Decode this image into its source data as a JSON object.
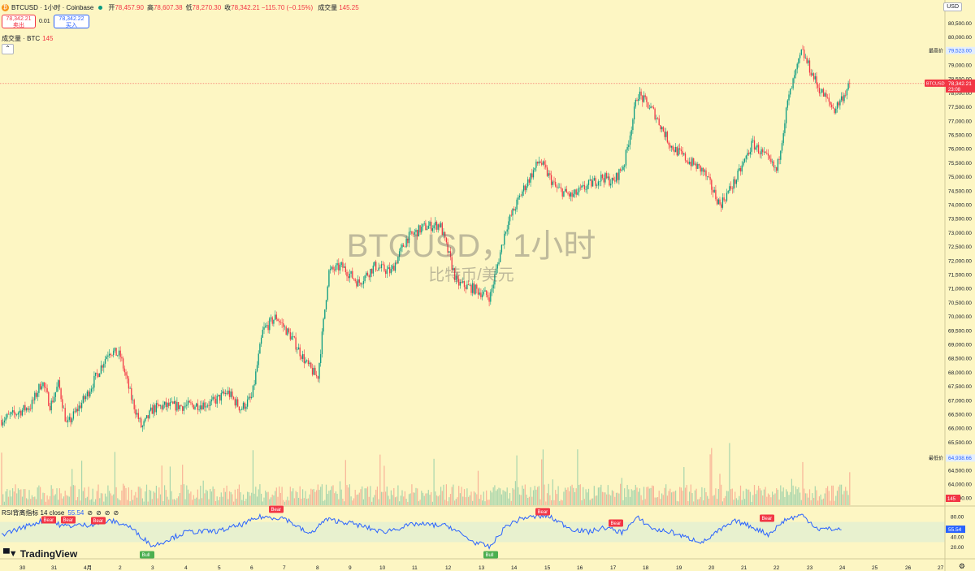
{
  "header": {
    "symbol_title": "BTCUSD · 1小时 · Coinbase",
    "open_label": "开",
    "open_value": "78,457.90",
    "high_label": "高",
    "high_value": "78,607.38",
    "low_label": "低",
    "low_value": "78,270.30",
    "close_label": "收",
    "close_value": "78,342.21",
    "change_value": "−115.70 (−0.15%)",
    "volume_label": "成交量",
    "volume_value": "145.25"
  },
  "trade": {
    "sell_price": "78,342.21",
    "sell_label": "卖出",
    "spread": "0.01",
    "buy_price": "78,342.22",
    "buy_label": "买入"
  },
  "volume_legend": {
    "label": "成交量 · BTC",
    "value": "145"
  },
  "currency_button": "USD",
  "watermark": {
    "title": "BTCUSD，1小时",
    "subtitle": "比特币/美元"
  },
  "rsi_legend": {
    "label": "RSI背离指标 14 close",
    "value": "55.54"
  },
  "brand": "TradingView",
  "price_axis": {
    "ticks": [
      "80,500.00",
      "80,000.00",
      "79,500.00",
      "79,000.00",
      "78,500.00",
      "78,000.00",
      "77,500.00",
      "77,000.00",
      "76,500.00",
      "76,000.00",
      "75,500.00",
      "75,000.00",
      "74,500.00",
      "74,000.00",
      "73,500.00",
      "73,000.00",
      "72,500.00",
      "72,000.00",
      "71,500.00",
      "71,000.00",
      "70,500.00",
      "70,000.00",
      "69,500.00",
      "69,000.00",
      "68,500.00",
      "68,000.00",
      "67,500.00",
      "67,000.00",
      "66,500.00",
      "66,000.00",
      "65,500.00",
      "65,000.00",
      "64,500.00",
      "64,000.00",
      "63,500.00"
    ],
    "high_label": "最高价",
    "high_value": "79,523.00",
    "low_label": "最低价",
    "low_value": "64,938.66",
    "current_symbol": "BTCUSD",
    "current_value": "78,342.21",
    "countdown": "23:08",
    "volume_badge": "145"
  },
  "rsi_axis": {
    "ticks": [
      "80.00",
      "40.00",
      "20.00"
    ],
    "current": "55.54"
  },
  "time_axis": [
    "30",
    "31",
    "4月",
    "2",
    "3",
    "4",
    "5",
    "6",
    "7",
    "8",
    "9",
    "10",
    "11",
    "12",
    "13",
    "14",
    "15",
    "16",
    "17",
    "18",
    "19",
    "20",
    "21",
    "22",
    "23",
    "24",
    "25",
    "26",
    "27"
  ],
  "rsi_markers": [
    {
      "label": "Bear",
      "type": "bear"
    },
    {
      "label": "Bear",
      "type": "bear"
    },
    {
      "label": "Bear",
      "type": "bear"
    },
    {
      "label": "Bull",
      "type": "bull"
    },
    {
      "label": "Bear",
      "type": "bear"
    },
    {
      "label": "Bull",
      "type": "bull"
    },
    {
      "label": "Bear",
      "type": "bear"
    },
    {
      "label": "Bear",
      "type": "bear"
    },
    {
      "label": "Bear",
      "type": "bear"
    }
  ],
  "colors": {
    "up": "#089981",
    "down": "#f23645",
    "rsi_line": "#2962ff",
    "background": "#fdf6c3",
    "bull": "#4caf50",
    "bear": "#f23645"
  },
  "chart_data": {
    "type": "candlestick",
    "anchors": [
      [
        "30",
        66300
      ],
      [
        "30",
        66800
      ],
      [
        "31",
        67700
      ],
      [
        "31",
        66800
      ],
      [
        "31",
        67600
      ],
      [
        "31",
        66100
      ],
      [
        "4月",
        67200
      ],
      [
        "2",
        68800
      ],
      [
        "2",
        68600
      ],
      [
        "2",
        67100
      ],
      [
        "3",
        66000
      ],
      [
        "3",
        66700
      ],
      [
        "3",
        66800
      ],
      [
        "4",
        66800
      ],
      [
        "5",
        66900
      ],
      [
        "5",
        67300
      ],
      [
        "6",
        66700
      ],
      [
        "6",
        67100
      ],
      [
        "6",
        69500
      ],
      [
        "7",
        70000
      ],
      [
        "7",
        69200
      ],
      [
        "8",
        68300
      ],
      [
        "8",
        67800
      ],
      [
        "8",
        71600
      ],
      [
        "9",
        71800
      ],
      [
        "9",
        71200
      ],
      [
        "10",
        71800
      ],
      [
        "10",
        71600
      ],
      [
        "11",
        72800
      ],
      [
        "11",
        73200
      ],
      [
        "12",
        73300
      ],
      [
        "12",
        71200
      ],
      [
        "13",
        71000
      ],
      [
        "13",
        70700
      ],
      [
        "14",
        73200
      ],
      [
        "14",
        74500
      ],
      [
        "15",
        75600
      ],
      [
        "15",
        74600
      ],
      [
        "16",
        74300
      ],
      [
        "16",
        74700
      ],
      [
        "17",
        75000
      ],
      [
        "17",
        74800
      ],
      [
        "17",
        75500
      ],
      [
        "18",
        78000
      ],
      [
        "18",
        77300
      ],
      [
        "19",
        76100
      ],
      [
        "19",
        75600
      ],
      [
        "20",
        75200
      ],
      [
        "20",
        74000
      ],
      [
        "21",
        74900
      ],
      [
        "21",
        76200
      ],
      [
        "22",
        75700
      ],
      [
        "22",
        75200
      ],
      [
        "22",
        77700
      ],
      [
        "23",
        79500
      ],
      [
        "23",
        78200
      ],
      [
        "24",
        77400
      ],
      [
        "24",
        78342.21
      ]
    ],
    "volume_series_name": "成交量",
    "rsi_series_name": "RSI",
    "rsi_anchors": [
      [
        "30",
        45
      ],
      [
        "31",
        75
      ],
      [
        "31",
        62
      ],
      [
        "4月",
        64
      ],
      [
        "2",
        72
      ],
      [
        "2",
        62
      ],
      [
        "3",
        22
      ],
      [
        "4",
        50
      ],
      [
        "5",
        52
      ],
      [
        "6",
        66
      ],
      [
        "6",
        80
      ],
      [
        "7",
        78
      ],
      [
        "8",
        45
      ],
      [
        "8",
        75
      ],
      [
        "9",
        68
      ],
      [
        "10",
        50
      ],
      [
        "11",
        66
      ],
      [
        "12",
        62
      ],
      [
        "13",
        30
      ],
      [
        "13",
        20
      ],
      [
        "14",
        62
      ],
      [
        "14",
        78
      ],
      [
        "15",
        82
      ],
      [
        "16",
        56
      ],
      [
        "16",
        50
      ],
      [
        "17",
        59
      ],
      [
        "17",
        49
      ],
      [
        "18",
        78
      ],
      [
        "18",
        55
      ],
      [
        "19",
        50
      ],
      [
        "19",
        38
      ],
      [
        "20",
        30
      ],
      [
        "20",
        54
      ],
      [
        "21",
        72
      ],
      [
        "21",
        60
      ],
      [
        "22",
        45
      ],
      [
        "22",
        74
      ],
      [
        "23",
        84
      ],
      [
        "23",
        56
      ],
      [
        "24",
        55.54
      ]
    ]
  }
}
